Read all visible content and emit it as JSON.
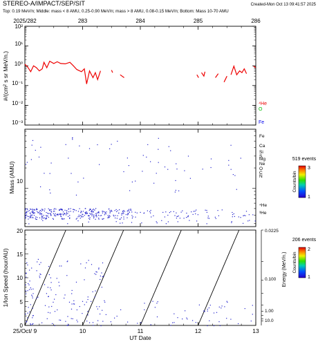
{
  "header": {
    "title": "STEREO-A/IMPACT/SEP/SIT",
    "created": "Created-Mon Oct 13 09:41:57 2025",
    "subtitle": "Top: 0.19 MeV/n; Middle: mass < 8 AMU, 0.25-0.90 MeV/n; mass > 8 AMU, 0.08-0.15 MeV/n; Bottom: Mass 10-70 AMU"
  },
  "colors": {
    "he": "#ee0000",
    "o": "#00bb00",
    "fe": "#0000ee",
    "dots": "#2222cc",
    "axis": "#000000"
  },
  "chart_data": [
    {
      "type": "line",
      "panel": "top",
      "ylabel": "#/(cm² s sr MeV/n.)",
      "yscale": "log",
      "ylim": [
        0.001,
        100
      ],
      "y_ticks": [
        "10⁻³",
        "10⁻²",
        "10⁻¹",
        "10⁰",
        "10¹",
        "10²"
      ],
      "xlim": [
        282,
        286
      ],
      "top_ticks": [
        "2025/282",
        "283",
        "284",
        "285",
        "286"
      ],
      "legend": [
        "⁴He",
        "O",
        "Fe"
      ],
      "series": [
        {
          "name": "⁴He",
          "segments": [
            [
              [
                282.0,
                1.2
              ],
              [
                282.05,
                0.85
              ],
              [
                282.1,
                0.5
              ],
              [
                282.15,
                1.0
              ],
              [
                282.2,
                0.8
              ],
              [
                282.25,
                0.55
              ],
              [
                282.3,
                0.7
              ],
              [
                282.33,
                1.5
              ],
              [
                282.38,
                0.8
              ],
              [
                282.43,
                1.7
              ],
              [
                282.5,
                1.3
              ],
              [
                282.56,
                1.6
              ],
              [
                282.62,
                1.3
              ],
              [
                282.7,
                1.25
              ],
              [
                282.78,
                1.5
              ],
              [
                282.84,
                1.0
              ],
              [
                282.9,
                0.65
              ],
              [
                282.98,
                0.5
              ],
              [
                283.03,
                0.7
              ],
              [
                283.07,
                0.12
              ],
              [
                283.12,
                0.55
              ],
              [
                283.18,
                0.25
              ],
              [
                283.22,
                0.45
              ],
              [
                283.26,
                0.2
              ],
              [
                283.31,
                0.55
              ]
            ],
            [
              [
                283.5,
                0.6
              ],
              [
                283.52,
                0.45
              ]
            ],
            [
              [
                283.65,
                0.35
              ],
              [
                283.72,
                0.25
              ]
            ],
            [
              [
                284.98,
                0.35
              ],
              [
                285.01,
                0.25
              ]
            ],
            [
              [
                285.06,
                0.45
              ],
              [
                285.1,
                0.3
              ],
              [
                285.12,
                0.5
              ]
            ],
            [
              [
                285.3,
                0.25
              ],
              [
                285.35,
                0.4
              ]
            ],
            [
              [
                285.45,
                0.15
              ],
              [
                285.5,
                0.3
              ]
            ],
            [
              [
                285.57,
                0.35
              ],
              [
                285.62,
                0.95
              ],
              [
                285.67,
                0.35
              ],
              [
                285.72,
                0.55
              ],
              [
                285.76,
                0.45
              ],
              [
                285.8,
                0.7
              ],
              [
                285.84,
                0.4
              ]
            ],
            [
              [
                285.96,
                0.95
              ],
              [
                286.0,
                0.8
              ]
            ]
          ]
        }
      ]
    },
    {
      "type": "scatter",
      "panel": "middle",
      "ylabel": "Mass (AMU)",
      "yscale": "log",
      "ylim": [
        2.7,
        75
      ],
      "y_ticks": [
        "10"
      ],
      "xlim": [
        282,
        286
      ],
      "species_labels": [
        "Fe",
        "Ca",
        "Si",
        "S",
        "Mg",
        "Ne",
        "O",
        "C",
        "N",
        "⁴He",
        "³He"
      ],
      "legend": "519 events",
      "colorbar": {
        "label": "Counts/bin",
        "min": "1",
        "max": "3"
      }
    },
    {
      "type": "scatter",
      "panel": "bottom",
      "xlabel": "UT Date",
      "ylabel": "1/Ion Speed (hour/AU)",
      "ylim": [
        0,
        20
      ],
      "y_ticks": [
        "0",
        "5",
        "10",
        "15",
        "20"
      ],
      "x_ticks": [
        "25/Oct/ 9",
        "10",
        "11",
        "12",
        "13"
      ],
      "xlim": [
        9,
        13
      ],
      "energy_axis_label": "Energy (MeV/n.)",
      "energy_ticks": [
        "0.0225",
        "0.100",
        "1.00",
        "10.0"
      ],
      "legend": "206 events",
      "colorbar": {
        "label": "Counts/bin",
        "min": "1",
        "max": "2"
      }
    }
  ]
}
